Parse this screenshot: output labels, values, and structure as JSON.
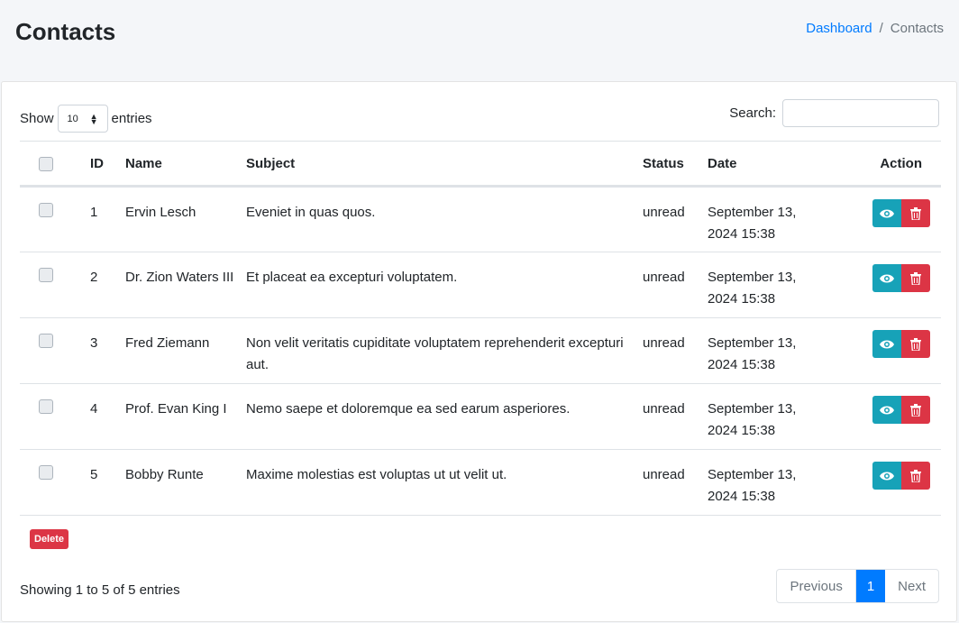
{
  "header": {
    "title": "Contacts",
    "breadcrumb": [
      "Dashboard",
      "Contacts"
    ]
  },
  "controls": {
    "show_label": "Show",
    "entries_value": "10",
    "entries_label": "entries",
    "search_label": "Search:",
    "search_value": ""
  },
  "table": {
    "columns": [
      "ID",
      "Name",
      "Subject",
      "Status",
      "Date",
      "Action"
    ],
    "rows": [
      {
        "id": "1",
        "name": "Ervin Lesch",
        "subject": "Eveniet in quas quos.",
        "status": "unread",
        "date": "September 13, 2024 15:38"
      },
      {
        "id": "2",
        "name": "Dr. Zion Waters III",
        "subject": "Et placeat ea excepturi voluptatem.",
        "status": "unread",
        "date": "September 13, 2024 15:38"
      },
      {
        "id": "3",
        "name": "Fred Ziemann",
        "subject": "Non velit veritatis cupiditate voluptatem reprehenderit excepturi aut.",
        "status": "unread",
        "date": "September 13, 2024 15:38"
      },
      {
        "id": "4",
        "name": "Prof. Evan King I",
        "subject": "Nemo saepe et doloremque ea sed earum asperiores.",
        "status": "unread",
        "date": "September 13, 2024 15:38"
      },
      {
        "id": "5",
        "name": "Bobby Runte",
        "subject": "Maxime molestias est voluptas ut ut velit ut.",
        "status": "unread",
        "date": "September 13, 2024 15:38"
      }
    ]
  },
  "footer": {
    "delete_label": "Delete",
    "info": "Showing 1 to 5 of 5 entries",
    "prev": "Previous",
    "page": "1",
    "next": "Next"
  },
  "colors": {
    "view": "#17a2b8",
    "delete": "#dc3545",
    "primary": "#007bff"
  }
}
